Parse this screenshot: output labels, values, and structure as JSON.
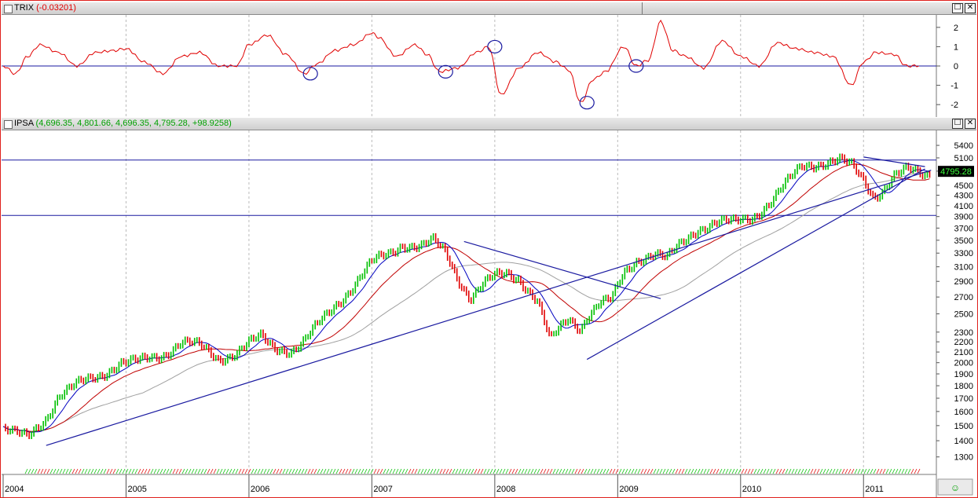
{
  "trix_panel": {
    "name": "TRIX",
    "value": "(-0.03201)",
    "max_label": "☐",
    "close_label": "✕"
  },
  "price_panel": {
    "name": "IPSA",
    "ohlc": "(4,696.35, 4,801.66, 4,696.35, 4,795.28, +98.9258)",
    "last_price": "4795.28",
    "max_label": "☐",
    "close_label": "✕"
  },
  "colors": {
    "up_bar": "#00c000",
    "down_bar": "#e00000",
    "trix_line": "#e00000",
    "trendline": "#1a1aa0",
    "ma_fast": "#0000c0",
    "ma_slow": "#c00000",
    "ma_long": "#a0a0a0"
  },
  "chart_data": [
    {
      "type": "line",
      "title": "TRIX (-0.03201)",
      "yticks": [
        2,
        1,
        0,
        -1,
        -2
      ],
      "ylim": [
        -2.4,
        2.4
      ],
      "x": [
        2004.0,
        2004.1,
        2004.2,
        2004.3,
        2004.45,
        2004.6,
        2004.75,
        2004.9,
        2005.0,
        2005.15,
        2005.3,
        2005.45,
        2005.6,
        2005.75,
        2005.9,
        2006.0,
        2006.15,
        2006.3,
        2006.45,
        2006.55,
        2006.7,
        2006.85,
        2007.0,
        2007.05,
        2007.2,
        2007.35,
        2007.45,
        2007.55,
        2007.7,
        2007.85,
        2007.95,
        2008.05,
        2008.2,
        2008.35,
        2008.5,
        2008.6,
        2008.7,
        2008.8,
        2008.9,
        2009.05,
        2009.15,
        2009.25,
        2009.35,
        2009.45,
        2009.55,
        2009.7,
        2009.85,
        2010.0,
        2010.15,
        2010.3,
        2010.45,
        2010.6,
        2010.75,
        2010.9,
        2011.0,
        2011.1,
        2011.25,
        2011.35,
        2011.45
      ],
      "series": [
        {
          "values": [
            0.0,
            -0.4,
            0.5,
            1.1,
            0.7,
            0.0,
            0.7,
            0.8,
            0.9,
            0.2,
            -0.4,
            0.5,
            0.7,
            0.0,
            0.0,
            1.1,
            1.6,
            0.6,
            -0.4,
            0.1,
            0.8,
            1.1,
            1.7,
            1.5,
            0.5,
            1.1,
            0.6,
            -0.3,
            -0.1,
            0.7,
            1.0,
            -1.5,
            -0.1,
            0.7,
            0.2,
            -0.2,
            -1.9,
            -0.7,
            -0.3,
            1.0,
            0.0,
            0.3,
            2.3,
            0.8,
            0.5,
            -0.1,
            1.3,
            0.5,
            0.0,
            1.2,
            0.9,
            0.7,
            0.5,
            -1.0,
            0.2,
            0.7,
            0.6,
            0.0,
            0.0
          ]
        }
      ],
      "annotations": [
        "circle 2006.5",
        "circle 2007.6",
        "circle 2008.0",
        "circle 2008.75",
        "circle 2009.15"
      ]
    },
    {
      "type": "line",
      "title": "IPSA (4,696.35, 4,801.66, 4,696.35, 4,795.28, +98.9258)",
      "yticks": [
        5400,
        5100,
        4800,
        4500,
        4300,
        4100,
        3900,
        3700,
        3500,
        3300,
        3100,
        2900,
        2700,
        2500,
        2300,
        2200,
        2100,
        2000,
        1900,
        1800,
        1700,
        1600,
        1500,
        1400,
        1300
      ],
      "ylim": [
        1200,
        5700
      ],
      "yscale": "log",
      "xticks": [
        "2004",
        "2005",
        "2006",
        "2007",
        "2008",
        "2009",
        "2010",
        "2011"
      ],
      "xlim": [
        2004.0,
        2011.58
      ],
      "x": [
        2004.0,
        2004.1,
        2004.2,
        2004.35,
        2004.45,
        2004.6,
        2004.8,
        2004.95,
        2005.1,
        2005.3,
        2005.45,
        2005.6,
        2005.75,
        2005.9,
        2006.0,
        2006.1,
        2006.2,
        2006.35,
        2006.45,
        2006.55,
        2006.7,
        2006.85,
        2007.0,
        2007.15,
        2007.25,
        2007.4,
        2007.5,
        2007.6,
        2007.7,
        2007.8,
        2007.9,
        2008.0,
        2008.1,
        2008.2,
        2008.35,
        2008.45,
        2008.6,
        2008.7,
        2008.75,
        2008.85,
        2008.95,
        2009.05,
        2009.15,
        2009.2,
        2009.3,
        2009.4,
        2009.5,
        2009.65,
        2009.8,
        2009.95,
        2010.1,
        2010.25,
        2010.4,
        2010.5,
        2010.65,
        2010.8,
        2010.9,
        2011.0,
        2011.08,
        2011.15,
        2011.25,
        2011.35,
        2011.45,
        2011.5,
        2011.55
      ],
      "series": [
        {
          "name": "IPSA",
          "values": [
            1480,
            1440,
            1420,
            1560,
            1720,
            1800,
            1900,
            2000,
            2000,
            2080,
            2200,
            2150,
            2040,
            2100,
            2180,
            2240,
            2150,
            2120,
            2200,
            2350,
            2600,
            2850,
            3150,
            3300,
            3450,
            3400,
            3470,
            3300,
            2950,
            2700,
            2850,
            2950,
            3000,
            2950,
            2650,
            2200,
            2450,
            2350,
            2480,
            2620,
            2650,
            3000,
            3200,
            3250,
            3300,
            3200,
            3400,
            3700,
            3800,
            3780,
            3900,
            4200,
            4600,
            4900,
            5000,
            5050,
            4900,
            4600,
            4300,
            4400,
            4700,
            4800,
            4750,
            4700,
            4795
          ]
        }
      ],
      "trendlines": [
        {
          "from": [
            2004.35,
            1370
          ],
          "to": [
            2011.55,
            4820
          ]
        },
        {
          "from": [
            2008.75,
            2030
          ],
          "to": [
            2011.5,
            4850
          ]
        },
        {
          "from": [
            2007.75,
            3480
          ],
          "to": [
            2009.35,
            2680
          ]
        },
        {
          "from": [
            2011.0,
            5120
          ],
          "to": [
            2011.5,
            4900
          ]
        }
      ],
      "hlines": [
        5050,
        3920
      ]
    }
  ]
}
